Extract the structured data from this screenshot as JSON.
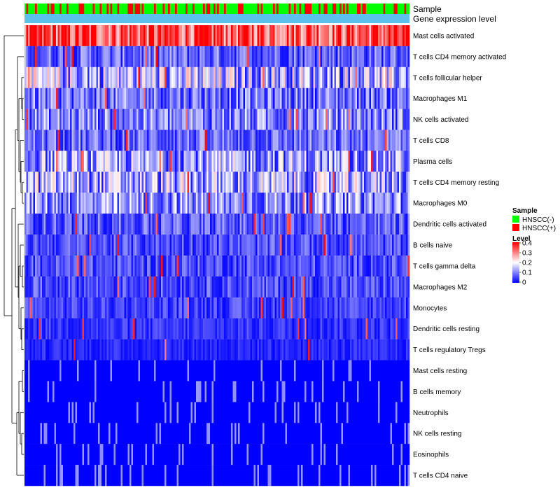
{
  "chart_data": {
    "type": "heatmap",
    "title": "",
    "annotation_tracks": [
      "Sample",
      "Gene expression level"
    ],
    "rows": [
      "Mast cells activated",
      "T cells CD4 memory activated",
      "T cells follicular helper",
      "Macrophages M1",
      "NK cells activated",
      "T cells CD8",
      "Plasma cells",
      "T cells CD4 memory resting",
      "Macrophages M0",
      "Dendritic cells activated",
      "B cells naive",
      "T cells gamma delta",
      "Macrophages M2",
      "Monocytes",
      "Dendritic cells resting",
      "T cells regulatory  Tregs",
      "Mast cells resting",
      "B cells memory",
      "Neutrophils",
      "NK cells resting",
      "Eosinophils",
      "T cells CD4 naive"
    ],
    "row_mean_levels": [
      0.34,
      0.08,
      0.14,
      0.09,
      0.1,
      0.08,
      0.12,
      0.13,
      0.11,
      0.07,
      0.06,
      0.06,
      0.06,
      0.05,
      0.04,
      0.03,
      0.01,
      0.01,
      0.02,
      0.01,
      0.005,
      0.02
    ],
    "n_samples": 220,
    "sample_legend": {
      "title": "Sample",
      "items": [
        {
          "label": "HNSCC(-)",
          "color": "#00ff00"
        },
        {
          "label": "HNSCC(+)",
          "color": "#ff0000"
        }
      ]
    },
    "level_legend": {
      "title": "Level",
      "ticks": [
        "0.4",
        "0.3",
        "0.2",
        "0.1",
        "0"
      ],
      "range": [
        0,
        0.4
      ],
      "colors": [
        "#0000ff",
        "#ffffff",
        "#ff0000"
      ]
    },
    "gene_expression_color": "#5bc0eb"
  }
}
